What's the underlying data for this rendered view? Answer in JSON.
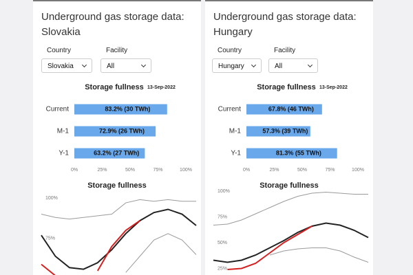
{
  "panels": [
    {
      "title": "Underground gas storage data: Slovakia",
      "country_label": "Country",
      "country": "Slovakia",
      "facility_label": "Facility",
      "facility": "All"
    },
    {
      "title": "Underground gas storage data: Hungary",
      "country_label": "Country",
      "country": "Hungary",
      "facility_label": "Facility",
      "facility": "All"
    }
  ],
  "chart_data": [
    {
      "type": "bar",
      "title": "Storage fullness",
      "subtitle": "13-Sep-2022",
      "categories": [
        "Current",
        "M-1",
        "Y-1"
      ],
      "values": [
        83.2,
        72.9,
        63.2
      ],
      "value_labels": [
        "83.2% (30 TWh)",
        "72.9% (26 TWh)",
        "63.2% (27 TWh)"
      ],
      "color": "#6aa8ec",
      "xlim": [
        0,
        100
      ],
      "xticks": [
        {
          "value": 0,
          "label": "0%"
        },
        {
          "value": 25,
          "label": "25%"
        },
        {
          "value": 50,
          "label": "50%"
        },
        {
          "value": 75,
          "label": "75%"
        },
        {
          "value": 100,
          "label": "100%"
        }
      ]
    },
    {
      "type": "line",
      "title": "Storage fullness",
      "ylim": [
        52,
        100
      ],
      "yticks": [
        {
          "value": 100,
          "label": "100%"
        },
        {
          "value": 75,
          "label": "75%"
        }
      ],
      "series": [
        {
          "color": "#9a9a9a",
          "values": [
            90,
            88,
            87,
            88,
            89,
            90,
            97,
            99,
            98,
            99,
            98,
            98
          ]
        },
        {
          "color": "#222222",
          "values": [
            77,
            64,
            57,
            56,
            60,
            68,
            78,
            86,
            91,
            93,
            90,
            83
          ]
        },
        {
          "color": "#d62020",
          "values": [
            59,
            52,
            null,
            null,
            55,
            70,
            80,
            86,
            null,
            null,
            null,
            null
          ]
        },
        {
          "color": "#9a9a9a",
          "values": [
            null,
            null,
            null,
            null,
            null,
            null,
            54,
            64,
            74,
            78,
            74,
            65
          ]
        }
      ]
    },
    {
      "type": "bar",
      "title": "Storage fullness",
      "subtitle": "13-Sep-2022",
      "categories": [
        "Current",
        "M-1",
        "Y-1"
      ],
      "values": [
        67.8,
        57.3,
        81.3
      ],
      "value_labels": [
        "67.8% (46 TWh)",
        "57.3% (39 TWh)",
        "81.3% (55 TWh)"
      ],
      "color": "#6aa8ec",
      "xlim": [
        0,
        100
      ],
      "xticks": [
        {
          "value": 0,
          "label": "0%"
        },
        {
          "value": 25,
          "label": "25%"
        },
        {
          "value": 50,
          "label": "50%"
        },
        {
          "value": 75,
          "label": "75%"
        },
        {
          "value": 100,
          "label": "100%"
        }
      ]
    },
    {
      "type": "line",
      "title": "Storage fullness",
      "ylim": [
        20,
        100
      ],
      "yticks": [
        {
          "value": 100,
          "label": "100%"
        },
        {
          "value": 75,
          "label": "75%"
        },
        {
          "value": 50,
          "label": "50%"
        },
        {
          "value": 25,
          "label": "25%"
        }
      ],
      "series": [
        {
          "color": "#9a9a9a",
          "values": [
            67,
            68,
            72,
            78,
            84,
            90,
            95,
            98,
            99,
            98,
            97,
            97
          ]
        },
        {
          "color": "#222222",
          "values": [
            33,
            31,
            33,
            38,
            45,
            52,
            60,
            66,
            69,
            67,
            62,
            55
          ]
        },
        {
          "color": "#d62020",
          "values": [
            null,
            24,
            25,
            30,
            40,
            50,
            58,
            66,
            null,
            null,
            null,
            null
          ]
        },
        {
          "color": "#9a9a9a",
          "values": [
            null,
            null,
            null,
            null,
            38,
            42,
            44,
            45,
            45,
            42,
            36,
            31
          ]
        }
      ]
    }
  ]
}
